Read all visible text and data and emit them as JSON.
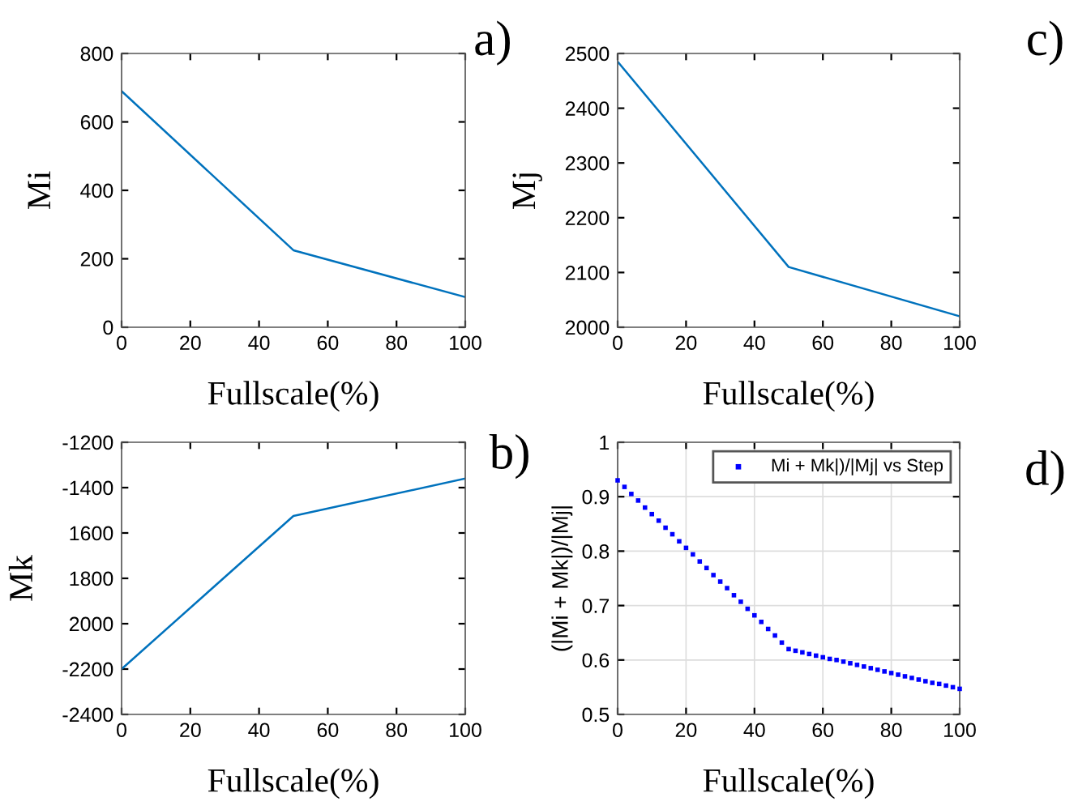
{
  "chart_data": [
    {
      "type": "line",
      "xlabel": "Fullscale(%)",
      "ylabel": "Mi",
      "annotations": [
        "a)"
      ],
      "x": [
        0,
        50,
        100
      ],
      "series": [
        {
          "color": "#0072bd",
          "values": [
            690,
            225,
            88
          ]
        }
      ],
      "xlim": [
        0,
        100
      ],
      "xticks": [
        0,
        20,
        40,
        60,
        80,
        100
      ],
      "ylim": [
        0,
        800
      ],
      "yticks": [
        0,
        200,
        400,
        600,
        800
      ],
      "grid": false,
      "legend": false,
      "marker": "none",
      "line_style": "solid"
    },
    {
      "type": "line",
      "xlabel": "Fullscale(%)",
      "ylabel": "Mj",
      "annotations": [
        "c)"
      ],
      "x": [
        0,
        50,
        100
      ],
      "series": [
        {
          "color": "#0072bd",
          "values": [
            2485,
            2110,
            2020
          ]
        }
      ],
      "xlim": [
        0,
        100
      ],
      "xticks": [
        0,
        20,
        40,
        60,
        80,
        100
      ],
      "ylim": [
        2000,
        2500
      ],
      "yticks": [
        2000,
        2100,
        2200,
        2300,
        2400,
        2500
      ],
      "grid": false,
      "legend": false,
      "marker": "none",
      "line_style": "solid"
    },
    {
      "type": "line",
      "xlabel": "Fullscale(%)",
      "ylabel": "Mk",
      "annotations": [
        "b)"
      ],
      "x": [
        0,
        50,
        100
      ],
      "series": [
        {
          "color": "#0072bd",
          "values": [
            -2200,
            -1525,
            -1360
          ]
        }
      ],
      "xlim": [
        0,
        100
      ],
      "xticks": [
        0,
        20,
        40,
        60,
        80,
        100
      ],
      "ylim": [
        -2400,
        -1200
      ],
      "yticks": [
        -2400,
        -2200,
        {
          "value": -2000,
          "label": "2000"
        },
        {
          "value": -1800,
          "label": "1800"
        },
        {
          "value": -1600,
          "label": "1600"
        },
        -1400,
        -1200
      ],
      "grid": false,
      "legend": false,
      "marker": "none",
      "line_style": "solid"
    },
    {
      "type": "scatter",
      "xlabel": "Fullscale(%)",
      "ylabel": "(|Mi + Mk|)/|Mj|",
      "annotations": [
        "d)"
      ],
      "x": [
        0,
        2,
        4,
        6,
        8,
        10,
        12,
        14,
        16,
        18,
        20,
        22,
        24,
        26,
        28,
        30,
        32,
        34,
        36,
        38,
        40,
        42,
        44,
        46,
        48,
        50,
        52,
        54,
        56,
        58,
        60,
        62,
        64,
        66,
        68,
        70,
        72,
        74,
        76,
        78,
        80,
        82,
        84,
        86,
        88,
        90,
        92,
        94,
        96,
        98,
        100
      ],
      "series": [
        {
          "name": "Mi + Mk|)/|Mj| vs Step",
          "color": "#0000ff",
          "values": [
            0.93,
            0.918,
            0.905,
            0.893,
            0.88,
            0.868,
            0.856,
            0.843,
            0.831,
            0.818,
            0.806,
            0.794,
            0.781,
            0.769,
            0.756,
            0.744,
            0.732,
            0.719,
            0.707,
            0.694,
            0.682,
            0.67,
            0.657,
            0.645,
            0.632,
            0.62,
            0.617,
            0.614,
            0.611,
            0.608,
            0.605,
            0.602,
            0.6,
            0.597,
            0.594,
            0.591,
            0.588,
            0.585,
            0.582,
            0.579,
            0.576,
            0.573,
            0.57,
            0.567,
            0.564,
            0.561,
            0.558,
            0.556,
            0.553,
            0.55,
            0.547
          ]
        }
      ],
      "xlim": [
        0,
        100
      ],
      "xticks": [
        0,
        20,
        40,
        60,
        80,
        100
      ],
      "ylim": [
        0.5,
        1
      ],
      "yticks": [
        0.5,
        0.6,
        0.7,
        0.8,
        0.9,
        1
      ],
      "grid": true,
      "legend": "top right",
      "marker": "square"
    }
  ]
}
